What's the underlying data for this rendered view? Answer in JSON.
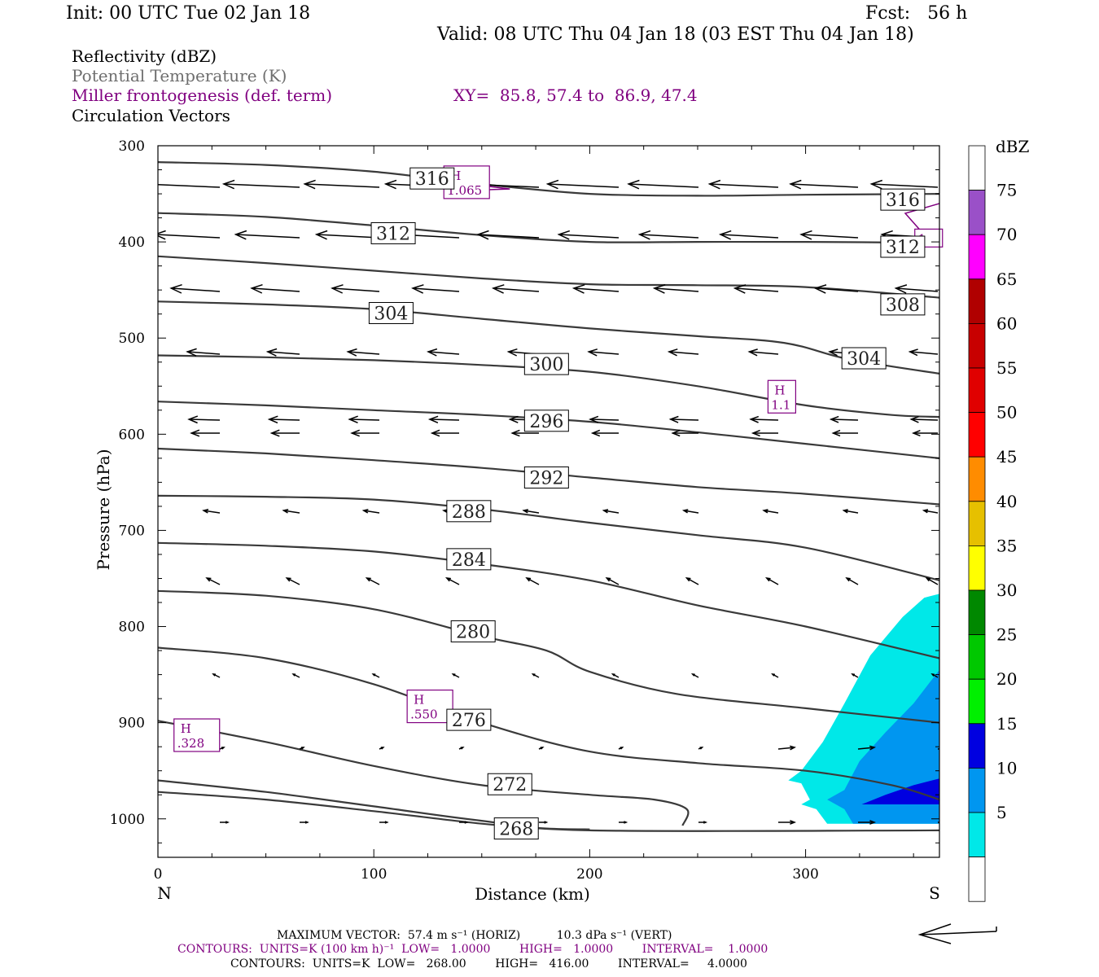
{
  "header": {
    "init": "Init: 00 UTC Tue 02 Jan 18",
    "fcst": "Fcst:   56 h",
    "valid": "Valid: 08 UTC Thu 04 Jan 18 (03 EST Thu 04 Jan 18)"
  },
  "legend": {
    "reflectivity": "Reflectivity (dBZ)",
    "theta": "Potential Temperature (K)",
    "frontogenesis": "Miller frontogenesis (def. term)",
    "xy": "XY=  85.8, 57.4 to  86.9, 47.4",
    "vectors": "Circulation Vectors"
  },
  "colors": {
    "theta_line": "#3a3a3a",
    "frontogenesis": "#800080",
    "refl_5": "#00e8e8",
    "refl_10": "#0096f0",
    "refl_15": "#0000e0"
  },
  "footer": {
    "max_vector": "MAXIMUM VECTOR:  57.4 m s⁻¹ (HORIZ)          10.3 dPa s⁻¹ (VERT)",
    "contours1": "CONTOURS:  UNITS=K (100 km h)⁻¹  LOW=   1.0000        HIGH=   1.0000        INTERVAL=    1.0000",
    "contours2": "CONTOURS:  UNITS=K  LOW=   268.00        HIGH=   416.00        INTERVAL=     4.0000"
  },
  "chart_data": {
    "type": "cross-section",
    "xlabel": "Distance (km)",
    "ylabel": "Pressure (hPa)",
    "xlim": [
      0,
      362
    ],
    "ylim": [
      1040,
      300
    ],
    "x_ticks": [
      0,
      100,
      200,
      300
    ],
    "y_ticks": [
      300,
      400,
      500,
      600,
      700,
      800,
      900,
      1000
    ],
    "x_endpoints": {
      "left": "N",
      "right": "S"
    },
    "colorbar": {
      "title": "dBZ",
      "levels": [
        5,
        10,
        15,
        20,
        25,
        30,
        35,
        40,
        45,
        50,
        55,
        60,
        65,
        70,
        75
      ],
      "colors": [
        "#00e8e8",
        "#0096f0",
        "#0000e0",
        "#00f000",
        "#00c800",
        "#008800",
        "#ffff00",
        "#e6c000",
        "#ff8c00",
        "#ff0000",
        "#e00000",
        "#c80000",
        "#b00000",
        "#ff00ff",
        "#9a50c8",
        "#ffffff"
      ]
    },
    "theta_contours": [
      {
        "value": "316",
        "points": [
          [
            0,
            317
          ],
          [
            50,
            320
          ],
          [
            100,
            327
          ],
          [
            150,
            340
          ],
          [
            200,
            350
          ],
          [
            250,
            352
          ],
          [
            300,
            351
          ],
          [
            362,
            350
          ]
        ],
        "labels": [
          [
            127,
            334
          ],
          [
            345,
            356
          ]
        ]
      },
      {
        "value": "312",
        "points": [
          [
            0,
            370
          ],
          [
            50,
            374
          ],
          [
            100,
            383
          ],
          [
            150,
            393
          ],
          [
            200,
            400
          ],
          [
            250,
            400
          ],
          [
            300,
            400
          ],
          [
            362,
            401
          ]
        ],
        "labels": [
          [
            109,
            391
          ],
          [
            345,
            405
          ]
        ]
      },
      {
        "value": "308",
        "points": [
          [
            0,
            415
          ],
          [
            50,
            422
          ],
          [
            100,
            430
          ],
          [
            150,
            438
          ],
          [
            200,
            444
          ],
          [
            250,
            445
          ],
          [
            300,
            447
          ],
          [
            362,
            458
          ]
        ],
        "labels": [
          [
            345,
            465
          ]
        ]
      },
      {
        "value": "304",
        "points": [
          [
            0,
            462
          ],
          [
            50,
            465
          ],
          [
            100,
            470
          ],
          [
            150,
            480
          ],
          [
            200,
            490
          ],
          [
            250,
            498
          ],
          [
            290,
            505
          ],
          [
            320,
            522
          ],
          [
            362,
            537
          ]
        ],
        "labels": [
          [
            108,
            474
          ],
          [
            327,
            521
          ]
        ]
      },
      {
        "value": "300",
        "points": [
          [
            0,
            518
          ],
          [
            50,
            520
          ],
          [
            100,
            523
          ],
          [
            150,
            528
          ],
          [
            200,
            535
          ],
          [
            250,
            550
          ],
          [
            300,
            570
          ],
          [
            340,
            580
          ],
          [
            362,
            582
          ]
        ],
        "labels": [
          [
            180,
            527
          ]
        ]
      },
      {
        "value": "296",
        "points": [
          [
            0,
            566
          ],
          [
            50,
            570
          ],
          [
            100,
            575
          ],
          [
            150,
            580
          ],
          [
            200,
            587
          ],
          [
            250,
            598
          ],
          [
            300,
            610
          ],
          [
            362,
            625
          ]
        ],
        "labels": [
          [
            180,
            586
          ]
        ]
      },
      {
        "value": "292",
        "points": [
          [
            0,
            615
          ],
          [
            50,
            620
          ],
          [
            100,
            627
          ],
          [
            150,
            635
          ],
          [
            200,
            645
          ],
          [
            250,
            655
          ],
          [
            300,
            662
          ],
          [
            362,
            673
          ]
        ],
        "labels": [
          [
            180,
            645
          ]
        ]
      },
      {
        "value": "288",
        "points": [
          [
            0,
            664
          ],
          [
            50,
            665
          ],
          [
            100,
            668
          ],
          [
            150,
            678
          ],
          [
            200,
            692
          ],
          [
            250,
            705
          ],
          [
            300,
            718
          ],
          [
            362,
            752
          ]
        ],
        "labels": [
          [
            144,
            680
          ]
        ]
      },
      {
        "value": "284",
        "points": [
          [
            0,
            713
          ],
          [
            50,
            716
          ],
          [
            100,
            722
          ],
          [
            150,
            735
          ],
          [
            200,
            752
          ],
          [
            250,
            778
          ],
          [
            300,
            800
          ],
          [
            362,
            833
          ]
        ],
        "labels": [
          [
            144,
            730
          ]
        ]
      },
      {
        "value": "280",
        "points": [
          [
            0,
            763
          ],
          [
            50,
            768
          ],
          [
            100,
            782
          ],
          [
            150,
            810
          ],
          [
            180,
            825
          ],
          [
            200,
            847
          ],
          [
            240,
            870
          ],
          [
            300,
            885
          ],
          [
            362,
            900
          ]
        ],
        "labels": [
          [
            146,
            805
          ]
        ]
      },
      {
        "value": "276",
        "points": [
          [
            0,
            822
          ],
          [
            50,
            833
          ],
          [
            100,
            860
          ],
          [
            150,
            900
          ],
          [
            200,
            930
          ],
          [
            250,
            942
          ],
          [
            300,
            950
          ],
          [
            340,
            965
          ],
          [
            362,
            980
          ]
        ],
        "labels": [
          [
            144,
            897
          ]
        ]
      },
      {
        "value": "272",
        "points": [
          [
            0,
            898
          ],
          [
            50,
            920
          ],
          [
            100,
            945
          ],
          [
            150,
            965
          ],
          [
            200,
            975
          ],
          [
            230,
            980
          ],
          [
            245,
            990
          ],
          [
            243,
            1007
          ]
        ],
        "labels": [
          [
            163,
            964
          ]
        ]
      },
      {
        "value": "268",
        "points": [
          [
            0,
            960
          ],
          [
            50,
            972
          ],
          [
            100,
            987
          ],
          [
            150,
            1002
          ],
          [
            200,
            1012
          ],
          [
            362,
            1012
          ]
        ],
        "labels": [
          [
            166,
            1010
          ]
        ]
      },
      {
        "value": "",
        "points": [
          [
            0,
            972
          ],
          [
            50,
            980
          ],
          [
            100,
            992
          ],
          [
            150,
            1005
          ],
          [
            180,
            1010
          ],
          [
            200,
            1011
          ]
        ],
        "labels": []
      }
    ],
    "frontogenesis_maxima": [
      {
        "label_top": "H",
        "label_bottom": "1.065",
        "x": 143,
        "p": 338
      },
      {
        "label_top": "H",
        "label_bottom": "1.1",
        "x": 289,
        "p": 561
      },
      {
        "label_top": "H",
        "label_bottom": ".550",
        "x": 126,
        "p": 883
      },
      {
        "label_top": "H",
        "label_bottom": ".328",
        "x": 18,
        "p": 913
      },
      {
        "label_top": "",
        "label_bottom": "1",
        "x": 357,
        "p": 396
      }
    ],
    "frontogenesis_contour": [
      [
        124,
        342
      ],
      [
        145,
        340
      ],
      [
        163,
        345
      ],
      [
        150,
        346
      ],
      [
        135,
        343
      ]
    ],
    "reflectivity_regions": [
      {
        "dbz": 5,
        "points": [
          [
            362,
            766
          ],
          [
            355,
            770
          ],
          [
            345,
            790
          ],
          [
            330,
            830
          ],
          [
            318,
            880
          ],
          [
            308,
            920
          ],
          [
            298,
            950
          ],
          [
            292,
            960
          ],
          [
            298,
            963
          ],
          [
            302,
            980
          ],
          [
            298,
            985
          ],
          [
            305,
            990
          ],
          [
            310,
            1005
          ],
          [
            362,
            1005
          ]
        ]
      },
      {
        "dbz": 10,
        "points": [
          [
            362,
            845
          ],
          [
            350,
            880
          ],
          [
            337,
            910
          ],
          [
            325,
            940
          ],
          [
            318,
            970
          ],
          [
            310,
            980
          ],
          [
            318,
            990
          ],
          [
            322,
            1005
          ],
          [
            362,
            1005
          ]
        ]
      },
      {
        "dbz": 15,
        "points": [
          [
            362,
            958
          ],
          [
            350,
            965
          ],
          [
            337,
            975
          ],
          [
            326,
            985
          ],
          [
            362,
            985
          ]
        ]
      }
    ],
    "max_vector_arrow": "horizontal reference arrow"
  }
}
